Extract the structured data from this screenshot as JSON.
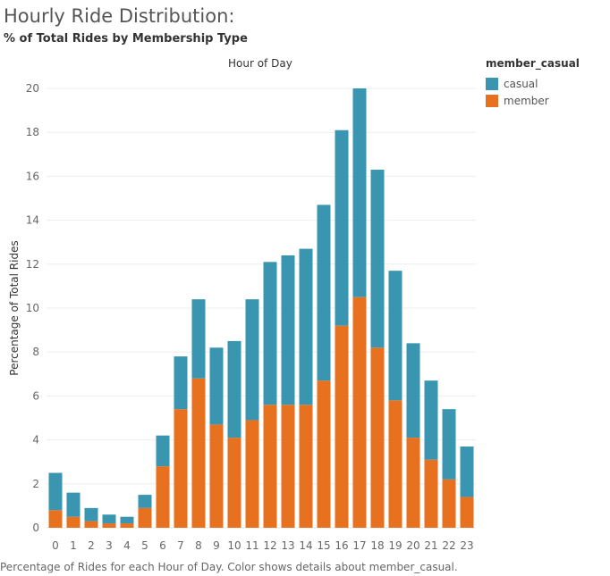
{
  "header": {
    "title": "Hourly Ride Distribution:",
    "subtitle": "% of Total Rides by Membership Type"
  },
  "legend": {
    "title": "member_casual",
    "items": [
      {
        "label": "casual",
        "color": "#3a96b0"
      },
      {
        "label": "member",
        "color": "#e8711f"
      }
    ]
  },
  "caption": "Percentage of Rides for each Hour of Day.  Color shows details about member_casual.",
  "chart_data": {
    "type": "bar",
    "stacked": true,
    "xlabel": "Hour of Day",
    "ylabel": "Percentage of Total Rides",
    "categories": [
      "0",
      "1",
      "2",
      "3",
      "4",
      "5",
      "6",
      "7",
      "8",
      "9",
      "10",
      "11",
      "12",
      "13",
      "14",
      "15",
      "16",
      "17",
      "18",
      "19",
      "20",
      "21",
      "22",
      "23"
    ],
    "ylim": [
      0,
      20.5
    ],
    "yticks": [
      0,
      2,
      4,
      6,
      8,
      10,
      12,
      14,
      16,
      18,
      20
    ],
    "grid": true,
    "legend_position": "top-right",
    "series": [
      {
        "name": "member",
        "color": "#e8711f",
        "values": [
          0.8,
          0.5,
          0.3,
          0.2,
          0.2,
          0.9,
          2.8,
          5.4,
          6.8,
          4.7,
          4.1,
          4.9,
          5.6,
          5.6,
          5.6,
          6.7,
          9.2,
          10.5,
          8.2,
          5.8,
          4.1,
          3.1,
          2.2,
          1.4
        ]
      },
      {
        "name": "casual",
        "color": "#3a96b0",
        "values": [
          1.7,
          1.1,
          0.6,
          0.4,
          0.3,
          0.6,
          1.4,
          2.4,
          3.6,
          3.5,
          4.4,
          5.5,
          6.5,
          6.8,
          7.1,
          8.0,
          8.9,
          9.5,
          8.1,
          5.9,
          4.3,
          3.6,
          3.2,
          2.3
        ]
      }
    ]
  }
}
